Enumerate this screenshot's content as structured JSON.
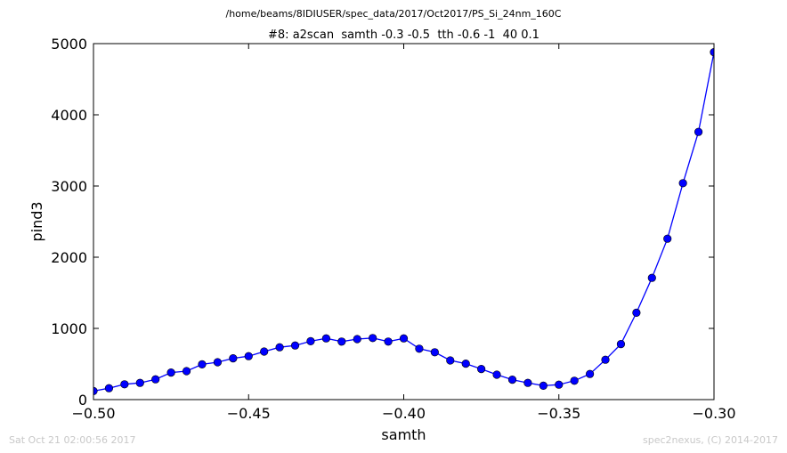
{
  "figure": {
    "path": "/home/beams/8IDIUSER/spec_data/2017/Oct2017/PS_Si_24nm_160C",
    "timestamp": "Sat Oct 21 02:00:56 2017",
    "credit": "spec2nexus, (C) 2014-2017"
  },
  "chart_data": {
    "type": "line",
    "title": "#8: a2scan  samth -0.3 -0.5  tth -0.6 -1  40 0.1",
    "xlabel": "samth",
    "ylabel": "pind3",
    "xlim": [
      -0.5,
      -0.3
    ],
    "ylim": [
      0,
      5000
    ],
    "xticks": [
      -0.5,
      -0.45,
      -0.4,
      -0.35,
      -0.3
    ],
    "xtick_labels": [
      "−0.50",
      "−0.45",
      "−0.40",
      "−0.35",
      "−0.30"
    ],
    "yticks": [
      0,
      1000,
      2000,
      3000,
      4000,
      5000
    ],
    "ytick_labels": [
      "0",
      "1000",
      "2000",
      "3000",
      "4000",
      "5000"
    ],
    "grid": false,
    "marker": "circle",
    "line_color": "#0000ff",
    "marker_color": "#0000ff",
    "series": [
      {
        "x": [
          -0.5,
          -0.495,
          -0.49,
          -0.485,
          -0.48,
          -0.475,
          -0.47,
          -0.465,
          -0.46,
          -0.455,
          -0.45,
          -0.445,
          -0.44,
          -0.435,
          -0.43,
          -0.425,
          -0.42,
          -0.415,
          -0.41,
          -0.405,
          -0.4,
          -0.395,
          -0.39,
          -0.385,
          -0.38,
          -0.375,
          -0.37,
          -0.365,
          -0.36,
          -0.355,
          -0.35,
          -0.345,
          -0.34,
          -0.335,
          -0.33,
          -0.325,
          -0.32,
          -0.315,
          -0.31,
          -0.305,
          -0.3
        ],
        "y": [
          120,
          160,
          215,
          235,
          285,
          380,
          400,
          495,
          525,
          580,
          610,
          675,
          735,
          760,
          820,
          860,
          815,
          850,
          865,
          815,
          860,
          715,
          665,
          550,
          505,
          430,
          350,
          280,
          235,
          195,
          210,
          265,
          360,
          560,
          780,
          1220,
          1710,
          2260,
          3040,
          3760,
          4880
        ]
      }
    ]
  }
}
